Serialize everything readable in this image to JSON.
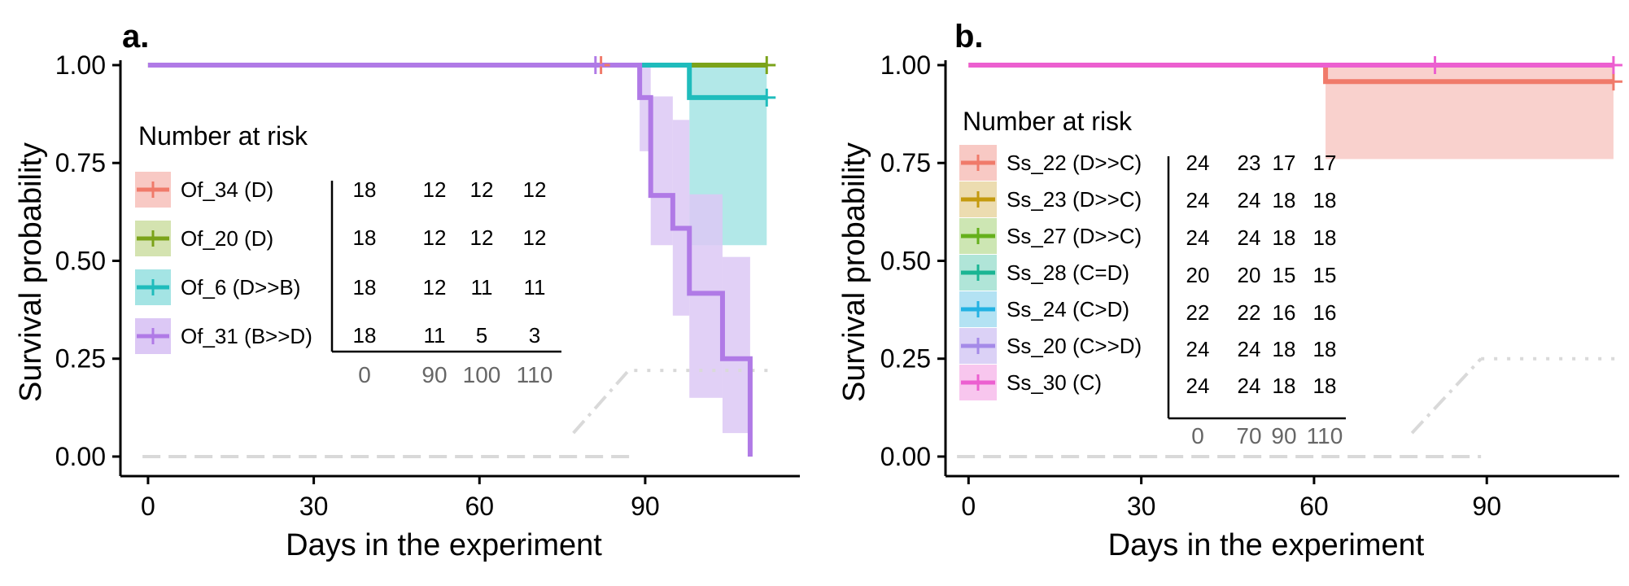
{
  "chart_data": [
    {
      "type": "line",
      "panel_label": "a.",
      "xlabel": "Days in the experiment",
      "ylabel": "Survival probability",
      "xlim": [
        -5,
        118
      ],
      "ylim": [
        -0.05,
        1.0
      ],
      "xticks": [
        0,
        30,
        60,
        90
      ],
      "yticks": [
        0.0,
        0.25,
        0.5,
        0.75,
        1.0
      ],
      "ytick_labels": [
        "0.00",
        "0.25",
        "0.50",
        "0.75",
        "1.00"
      ],
      "grid": false,
      "series": [
        {
          "name": "Of_34 (D)",
          "color": "#f07a6a",
          "fill": "#f8c9c4",
          "steps": [
            [
              0,
              1.0
            ],
            [
              112,
              1.0
            ]
          ],
          "ci": [],
          "censor": [
            [
              82,
              1.0
            ]
          ]
        },
        {
          "name": "Of_20 (D)",
          "color": "#7ba31a",
          "fill": "#d4e3b0",
          "steps": [
            [
              0,
              1.0
            ],
            [
              112,
              1.0
            ]
          ],
          "ci": [],
          "censor": [
            [
              112,
              1.0
            ]
          ]
        },
        {
          "name": "Of_6 (D>>B)",
          "color": "#1fbcbc",
          "fill": "#a4e4e4",
          "steps": [
            [
              0,
              1.0
            ],
            [
              98,
              1.0
            ],
            [
              98,
              0.917
            ],
            [
              112,
              0.917
            ]
          ],
          "ci": [
            [
              98,
              112,
              0.54,
              1.0
            ]
          ],
          "censor": [
            [
              112,
              0.917
            ]
          ]
        },
        {
          "name": "Of_31 (B>>D)",
          "color": "#b07ae6",
          "fill": "#dcc8f5",
          "steps": [
            [
              0,
              1.0
            ],
            [
              89,
              1.0
            ],
            [
              89,
              0.917
            ],
            [
              91,
              0.917
            ],
            [
              91,
              0.667
            ],
            [
              95,
              0.667
            ],
            [
              95,
              0.583
            ],
            [
              98,
              0.583
            ],
            [
              98,
              0.417
            ],
            [
              104,
              0.417
            ],
            [
              104,
              0.25
            ],
            [
              109,
              0.25
            ],
            [
              109,
              0.0
            ]
          ],
          "ci": [
            [
              89,
              91,
              0.78,
              1.0
            ],
            [
              91,
              95,
              0.54,
              0.92
            ],
            [
              95,
              98,
              0.36,
              0.86
            ],
            [
              98,
              104,
              0.15,
              0.67
            ],
            [
              104,
              109,
              0.06,
              0.51
            ]
          ],
          "censor": [
            [
              81,
              1.0
            ]
          ]
        }
      ],
      "dash_lines": [
        {
          "style": "dashed",
          "points": [
            [
              -1,
              0.0
            ],
            [
              88,
              0.0
            ]
          ]
        },
        {
          "style": "dashdot",
          "points": [
            [
              77,
              0.06
            ],
            [
              87,
              0.22
            ]
          ]
        },
        {
          "style": "dotted",
          "points": [
            [
              88,
              0.22
            ],
            [
              113,
              0.22
            ]
          ]
        }
      ],
      "risk_table": {
        "title": "Number at risk",
        "columns": [
          "0",
          "90",
          "100",
          "110"
        ],
        "rows": [
          {
            "label": "Of_34 (D)",
            "values": [
              "18",
              "12",
              "12",
              "12"
            ]
          },
          {
            "label": "Of_20 (D)",
            "values": [
              "18",
              "12",
              "12",
              "12"
            ]
          },
          {
            "label": "Of_6 (D>>B)",
            "values": [
              "18",
              "12",
              "11",
              "11"
            ]
          },
          {
            "label": "Of_31 (B>>D)",
            "values": [
              "18",
              "11",
              "5",
              "3"
            ]
          }
        ]
      }
    },
    {
      "type": "line",
      "panel_label": "b.",
      "xlabel": "Days in the experiment",
      "ylabel": "Survival probability",
      "xlim": [
        -4,
        113
      ],
      "ylim": [
        -0.05,
        1.0
      ],
      "xticks": [
        0,
        30,
        60,
        90
      ],
      "yticks": [
        0.0,
        0.25,
        0.5,
        0.75,
        1.0
      ],
      "ytick_labels": [
        "0.00",
        "0.25",
        "0.50",
        "0.75",
        "1.00"
      ],
      "grid": false,
      "series": [
        {
          "name": "Ss_22 (D>>C)",
          "color": "#f07a6a",
          "fill": "#f8c9c4",
          "steps": [
            [
              0,
              1.0
            ],
            [
              62,
              1.0
            ],
            [
              62,
              0.958
            ],
            [
              112,
              0.958
            ]
          ],
          "ci": [
            [
              62,
              112,
              0.76,
              1.0
            ]
          ],
          "censor": [
            [
              112,
              0.958
            ]
          ]
        },
        {
          "name": "Ss_23 (D>>C)",
          "color": "#c49a0e",
          "fill": "#ecdcb0",
          "steps": [],
          "ci": [],
          "censor": []
        },
        {
          "name": "Ss_27 (D>>C)",
          "color": "#65b01c",
          "fill": "#cde6b3",
          "steps": [],
          "ci": [],
          "censor": []
        },
        {
          "name": "Ss_28 (C=D)",
          "color": "#1ab593",
          "fill": "#b0e5d8",
          "steps": [],
          "ci": [],
          "censor": []
        },
        {
          "name": "Ss_24 (C>D)",
          "color": "#22b2e3",
          "fill": "#b3e2f3",
          "steps": [],
          "ci": [],
          "censor": []
        },
        {
          "name": "Ss_20 (C>>D)",
          "color": "#a58ae8",
          "fill": "#dbd1f6",
          "steps": [],
          "ci": [],
          "censor": []
        },
        {
          "name": "Ss_30 (C)",
          "color": "#ec5fd0",
          "fill": "#f8c6ee",
          "steps": [
            [
              0,
              1.0
            ],
            [
              112,
              1.0
            ]
          ],
          "ci": [],
          "censor": [
            [
              81,
              1.0
            ],
            [
              112,
              1.0
            ]
          ]
        }
      ],
      "dash_lines": [
        {
          "style": "dashed",
          "points": [
            [
              -2,
              0.0
            ],
            [
              89,
              0.0
            ]
          ]
        },
        {
          "style": "dashdot",
          "points": [
            [
              77,
              0.06
            ],
            [
              89,
              0.25
            ]
          ]
        },
        {
          "style": "dotted",
          "points": [
            [
              89,
              0.25
            ],
            [
              113,
              0.25
            ]
          ]
        }
      ],
      "risk_table": {
        "title": "Number at risk",
        "columns": [
          "0",
          "70",
          "90",
          "110"
        ],
        "rows": [
          {
            "label": "Ss_22 (D>>C)",
            "values": [
              "24",
              "23",
              "17",
              "17"
            ]
          },
          {
            "label": "Ss_23 (D>>C)",
            "values": [
              "24",
              "24",
              "18",
              "18"
            ]
          },
          {
            "label": "Ss_27 (D>>C)",
            "values": [
              "24",
              "24",
              "18",
              "18"
            ]
          },
          {
            "label": "Ss_28 (C=D)",
            "values": [
              "20",
              "20",
              "15",
              "15"
            ]
          },
          {
            "label": "Ss_24 (C>D)",
            "values": [
              "22",
              "22",
              "16",
              "16"
            ]
          },
          {
            "label": "Ss_20 (C>>D)",
            "values": [
              "24",
              "24",
              "18",
              "18"
            ]
          },
          {
            "label": "Ss_30 (C)",
            "values": [
              "24",
              "24",
              "18",
              "18"
            ]
          }
        ]
      }
    }
  ]
}
